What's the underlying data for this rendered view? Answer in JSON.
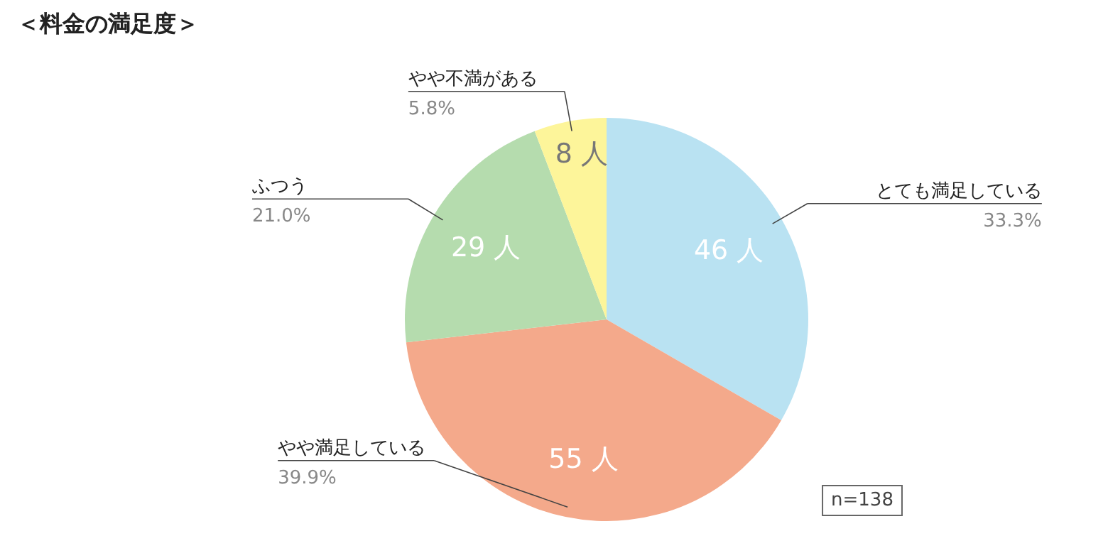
{
  "chart_data": {
    "type": "pie",
    "title": "＜料金の満足度＞",
    "categories": [
      "とても満足している",
      "やや満足している",
      "ふつう",
      "やや不満がある"
    ],
    "values": [
      46,
      55,
      29,
      8
    ],
    "colors": [
      "#b9e2f2",
      "#f4a98b",
      "#b5dcae",
      "#fdf59a"
    ],
    "value_labels": [
      "46 人",
      "55 人",
      "29 人",
      "8 人"
    ],
    "annotations": [
      {
        "text": "33.3%",
        "x": "とても満足している"
      },
      {
        "text": "39.9%",
        "x": "やや満足している"
      },
      {
        "text": "21.0%",
        "x": "ふつう"
      },
      {
        "text": "5.8%",
        "x": "やや不満がある"
      },
      "n=138"
    ]
  }
}
